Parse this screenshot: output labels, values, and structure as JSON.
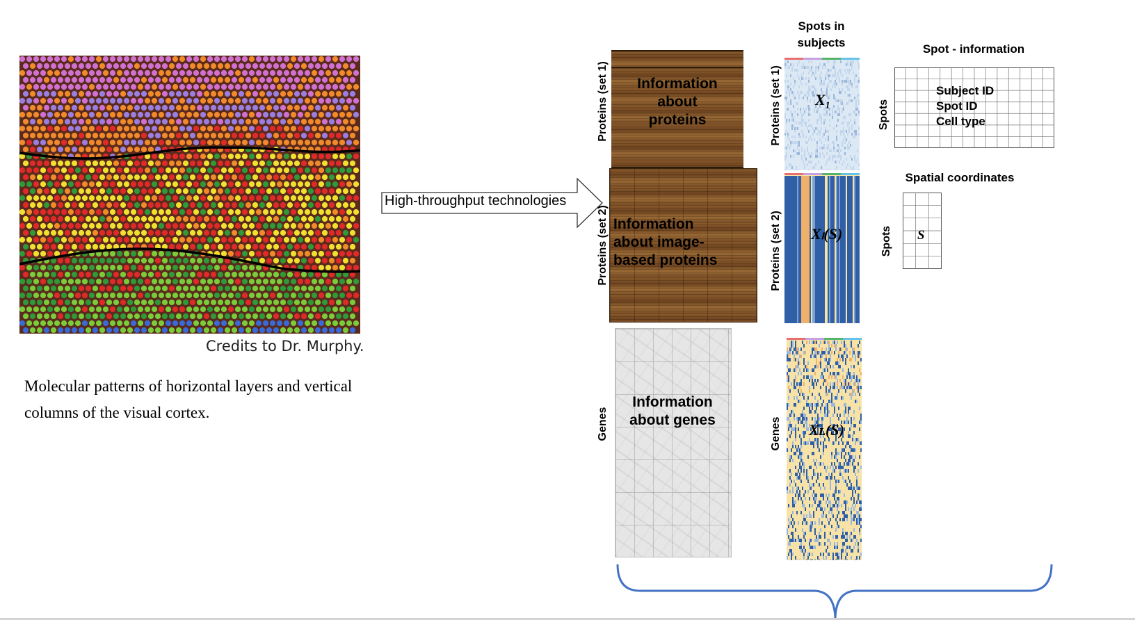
{
  "left_panel": {
    "credit": "Credits to Dr. Murphy.",
    "caption_line1": "Molecular patterns of horizontal layers and vertical",
    "caption_line2": "columns of the visual cortex."
  },
  "arrow": {
    "label": "High-throughput technologies"
  },
  "rows": [
    {
      "axis_label": "Proteins (set 1)",
      "box_text_line1": "Information",
      "box_text_line2": "about",
      "box_text_line3": "proteins",
      "matrix_axis_label": "Proteins (set 1)",
      "matrix_label": "X₁"
    },
    {
      "axis_label": "Proteins (set 2)",
      "box_text_line1": "Information",
      "box_text_line2": "about image-",
      "box_text_line3": "based proteins",
      "matrix_axis_label": "Proteins (set 2)",
      "matrix_label": "Xₗ(S)"
    },
    {
      "axis_label": "Genes",
      "box_text_line1": "Information",
      "box_text_line2": "about genes",
      "matrix_axis_label": "Genes",
      "matrix_label": "Xʟ(S)"
    }
  ],
  "matrix_header_line1": "Spots in",
  "matrix_header_line2": "subjects",
  "spot_info": {
    "title": "Spot - information",
    "axis_label": "Spots",
    "fields": [
      "Subject ID",
      "Spot ID",
      "Cell type"
    ]
  },
  "spatial": {
    "title": "Spatial coordinates",
    "axis_label": "Spots",
    "cell_symbol": "S"
  },
  "colors": {
    "brace": "#4472c4",
    "cortex_background": "#5a2a1c",
    "layer_colors": [
      "#d070d0",
      "#9a7ee0",
      "#f08a2a",
      "#e02a2a",
      "#f0e030",
      "#2f9a3a",
      "#7acc3a",
      "#3a6ad8"
    ],
    "heatmap_light": "#dce9f5",
    "heatmap_dark": "#2f5fa6",
    "heatmap_warm": "#f7e3a7",
    "heatmap_orange": "#efb06a"
  }
}
